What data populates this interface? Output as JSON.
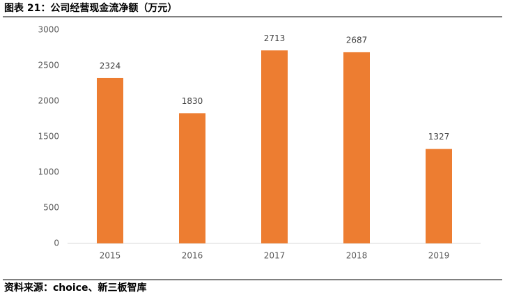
{
  "chart_data": {
    "type": "bar",
    "title": "图表 21：公司经营现金流净额（万元）",
    "categories": [
      "2015",
      "2016",
      "2017",
      "2018",
      "2019"
    ],
    "values": [
      2324,
      1830,
      2713,
      2687,
      1327
    ],
    "color": "#ed7d31",
    "ylim": [
      0,
      3000
    ],
    "yticks": [
      0,
      500,
      1000,
      1500,
      2000,
      2500,
      3000
    ],
    "grid": false
  },
  "source": "资料来源：choice、新三板智库"
}
